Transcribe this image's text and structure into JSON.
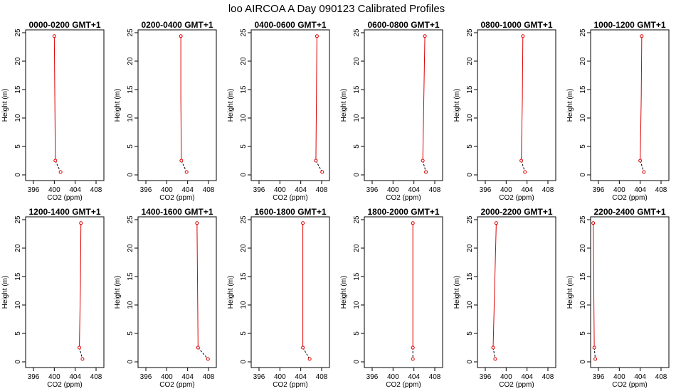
{
  "chart_data": {
    "type": "line",
    "title": "loo AIRCOA A  Day 090123  Calibrated Profiles",
    "xlabel": "CO2 (ppm)",
    "ylabel": "Height (m)",
    "xlim": [
      394.5,
      409.5
    ],
    "ylim": [
      -1,
      25.5
    ],
    "x_ticks": [
      396,
      400,
      404,
      408
    ],
    "x_tick_labels": [
      "396",
      "400",
      "404",
      "408"
    ],
    "y_ticks": [
      0,
      5,
      10,
      15,
      20,
      25
    ],
    "y_tick_labels": [
      "0",
      "5",
      "10",
      "15",
      "20",
      "25"
    ],
    "heights": [
      24.4,
      13.4,
      2.5,
      0.5
    ],
    "grid": false,
    "line_color": "#dd0000",
    "marker": "open-circle",
    "lower_segment_style": "dashed",
    "panels": [
      {
        "title": "0000-0200 GMT+1",
        "co2": [
          400.0,
          400.1,
          400.2,
          401.2
        ]
      },
      {
        "title": "0200-0400 GMT+1",
        "co2": [
          402.7,
          402.7,
          402.8,
          403.8
        ]
      },
      {
        "title": "0400-0600 GMT+1",
        "co2": [
          407.1,
          407.0,
          406.9,
          408.1
        ]
      },
      {
        "title": "0600-0800 GMT+1",
        "co2": [
          406.1,
          405.9,
          405.7,
          406.3
        ]
      },
      {
        "title": "0800-1000 GMT+1",
        "co2": [
          403.2,
          403.1,
          402.9,
          403.6
        ]
      },
      {
        "title": "1000-1200 GMT+1",
        "co2": [
          404.3,
          404.2,
          404.0,
          404.7
        ]
      },
      {
        "title": "1200-1400 GMT+1",
        "co2": [
          405.1,
          405.0,
          404.8,
          405.4
        ]
      },
      {
        "title": "1400-1600 GMT+1",
        "co2": [
          405.8,
          405.9,
          406.0,
          407.9
        ]
      },
      {
        "title": "1600-1800 GMT+1",
        "co2": [
          404.4,
          404.4,
          404.4,
          405.7
        ]
      },
      {
        "title": "1800-2000 GMT+1",
        "co2": [
          403.8,
          403.8,
          403.8,
          403.8
        ]
      },
      {
        "title": "2000-2200 GMT+1",
        "co2": [
          398.1,
          397.8,
          397.5,
          397.9
        ]
      },
      {
        "title": "2200-2400 GMT+1",
        "co2": [
          395.0,
          395.1,
          395.2,
          395.4
        ]
      }
    ]
  }
}
